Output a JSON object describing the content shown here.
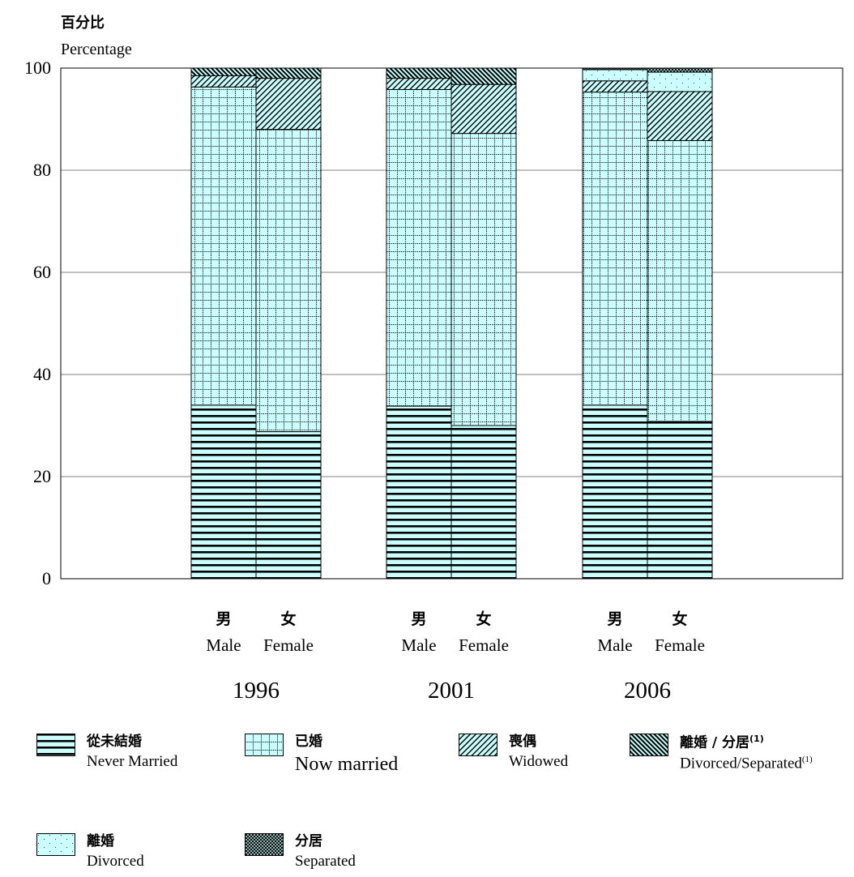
{
  "y_axis_label": {
    "zh": "百分比",
    "en": "Percentage"
  },
  "colors": {
    "fill": "#ccffff",
    "pattern": "#000000",
    "grid": "#808080"
  },
  "chart_data": {
    "type": "bar",
    "stacked": true,
    "ylim": [
      0,
      100
    ],
    "yticks": [
      0,
      20,
      40,
      60,
      80,
      100
    ],
    "grid": true,
    "years": [
      "1996",
      "2001",
      "2006"
    ],
    "gender_labels": [
      {
        "zh": "男",
        "en": "Male"
      },
      {
        "zh": "女",
        "en": "Female"
      }
    ],
    "series": [
      {
        "name_zh": "從未結婚",
        "name_en": "Never Married",
        "pattern": "horizontal-lines",
        "values": [
          34,
          28.8,
          33.8,
          30,
          34,
          30.8
        ]
      },
      {
        "name_zh": "已婚",
        "name_en": "Now married",
        "pattern": "dotted-grid",
        "values": [
          62.3,
          59.2,
          62,
          57.2,
          61.3,
          55
        ]
      },
      {
        "name_zh": "喪偶",
        "name_en": "Widowed",
        "pattern": "diagonal-lines",
        "values": [
          2.2,
          10,
          2.2,
          9.6,
          2.2,
          9.6
        ]
      },
      {
        "name_zh": "離婚 / 分居",
        "name_en": "Divorced/Separated",
        "note": "(1)",
        "pattern": "dense-diagonal",
        "values": [
          1.5,
          2,
          2,
          3.2,
          null,
          null
        ]
      },
      {
        "name_zh": "離婚",
        "name_en": "Divorced",
        "pattern": "dots",
        "values": [
          null,
          null,
          null,
          null,
          2.2,
          3.8
        ]
      },
      {
        "name_zh": "分居",
        "name_en": "Separated",
        "pattern": "crosshatch",
        "values": [
          null,
          null,
          null,
          null,
          0.3,
          0.8
        ]
      }
    ]
  }
}
